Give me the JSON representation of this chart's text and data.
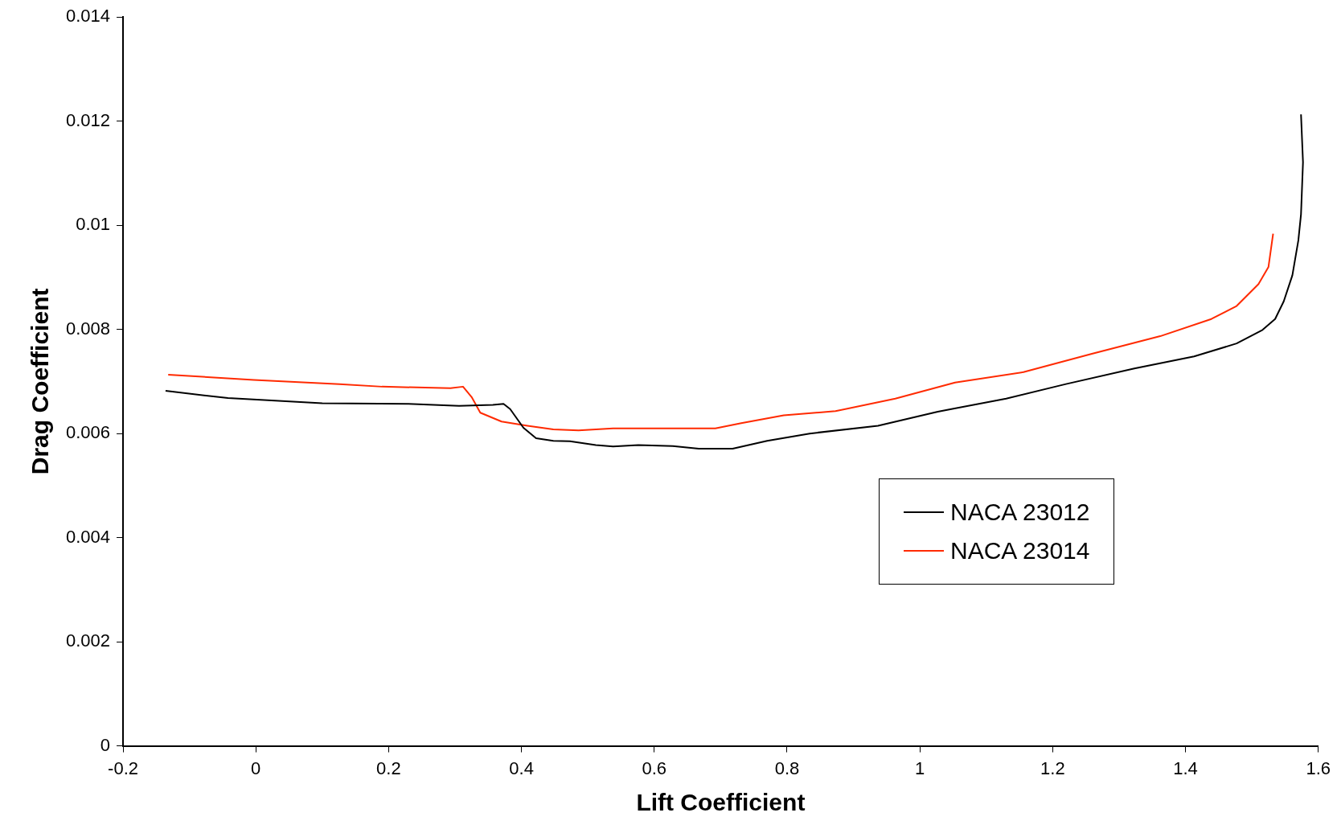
{
  "chart_data": {
    "type": "line",
    "xlabel": "Lift Coefficient",
    "ylabel": "Drag Coefficient",
    "xlim": [
      -0.2,
      1.6
    ],
    "xticks": [
      -0.2,
      0,
      0.2,
      0.4,
      0.6,
      0.8,
      1,
      1.2,
      1.4,
      1.6
    ],
    "ylim": [
      0,
      0.014
    ],
    "yticks": [
      0,
      0.002,
      0.004,
      0.006,
      0.008,
      0.01,
      0.012,
      0.014
    ],
    "grid": false,
    "legend": "right",
    "marker": "none",
    "line_style": "solid",
    "series": [
      {
        "name": "NACA 23012",
        "color": "#000000",
        "x": [
          -0.136,
          -0.042,
          0.1,
          0.229,
          0.306,
          0.357,
          0.373,
          0.383,
          0.403,
          0.422,
          0.448,
          0.473,
          0.512,
          0.538,
          0.576,
          0.628,
          0.667,
          0.718,
          0.77,
          0.834,
          0.937,
          1.027,
          1.13,
          1.22,
          1.323,
          1.413,
          1.477,
          1.516,
          1.535,
          1.548,
          1.561,
          1.57,
          1.574,
          1.577,
          1.574
        ],
        "values": [
          0.00682,
          0.00668,
          0.00658,
          0.00657,
          0.00653,
          0.00655,
          0.00657,
          0.00647,
          0.00611,
          0.00591,
          0.00586,
          0.00585,
          0.00578,
          0.00575,
          0.00578,
          0.00576,
          0.00571,
          0.00571,
          0.00586,
          0.006,
          0.00615,
          0.00642,
          0.00667,
          0.00695,
          0.00725,
          0.00748,
          0.00773,
          0.00799,
          0.0082,
          0.00854,
          0.00904,
          0.00971,
          0.01021,
          0.01121,
          0.01213
        ]
      },
      {
        "name": "NACA 23014",
        "color": "#ff2a00",
        "x": [
          -0.132,
          -0.003,
          0.126,
          0.19,
          0.293,
          0.312,
          0.325,
          0.338,
          0.37,
          0.409,
          0.448,
          0.486,
          0.538,
          0.692,
          0.731,
          0.795,
          0.873,
          0.963,
          1.053,
          1.156,
          1.259,
          1.362,
          1.439,
          1.477,
          1.51,
          1.525,
          1.532
        ],
        "values": [
          0.00713,
          0.00703,
          0.00695,
          0.0069,
          0.00687,
          0.0069,
          0.0067,
          0.0064,
          0.00623,
          0.00615,
          0.00608,
          0.00606,
          0.0061,
          0.0061,
          0.0062,
          0.00635,
          0.00643,
          0.00667,
          0.00698,
          0.00718,
          0.00753,
          0.00787,
          0.0082,
          0.00845,
          0.00887,
          0.0092,
          0.00984
        ]
      }
    ]
  }
}
